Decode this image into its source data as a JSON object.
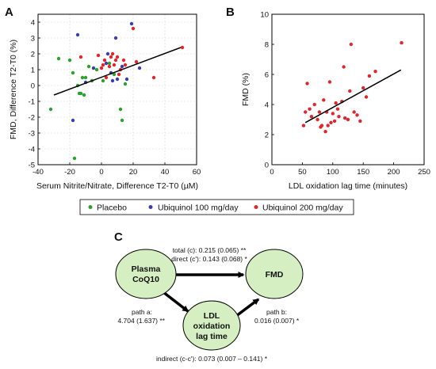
{
  "panels": {
    "a_letter": "A",
    "b_letter": "B",
    "c_letter": "C"
  },
  "chart_data": [
    {
      "panel": "A",
      "type": "scatter",
      "title": "",
      "xlabel": "Serum Nitrite/Nitrate, Difference T2-T0 (µM)",
      "ylabel": "FMD, Difference T2-T0 (%)",
      "xlim": [
        -40,
        60
      ],
      "ylim": [
        -5,
        4.5
      ],
      "xticks": [
        -40,
        -20,
        0,
        20,
        40,
        60
      ],
      "yticks": [
        -5,
        -4,
        -3,
        -2,
        -1,
        0,
        1,
        2,
        3,
        4
      ],
      "grid": true,
      "regression": {
        "x1": -30,
        "y1": -0.6,
        "x2": 50,
        "y2": 2.4
      },
      "series": [
        {
          "name": "Placebo",
          "color": "#2ca02c",
          "points": [
            [
              -32,
              -1.5
            ],
            [
              -27,
              1.7
            ],
            [
              -20,
              1.6
            ],
            [
              -18,
              0.8
            ],
            [
              -17,
              -4.6
            ],
            [
              -15,
              0.0
            ],
            [
              -14,
              -0.5
            ],
            [
              -13,
              -0.5
            ],
            [
              -12,
              0.5
            ],
            [
              -10,
              0.5
            ],
            [
              -8,
              1.2
            ],
            [
              -6,
              0.3
            ],
            [
              -3,
              1.0
            ],
            [
              1,
              0.3
            ],
            [
              5,
              1.4
            ],
            [
              8,
              0.7
            ],
            [
              12,
              -1.5
            ],
            [
              13,
              -2.2
            ],
            [
              15,
              0.1
            ],
            [
              -11,
              -0.6
            ]
          ]
        },
        {
          "name": "Ubiquinol 100 mg/day",
          "color": "#3a3fa8",
          "points": [
            [
              -18,
              -2.2
            ],
            [
              -15,
              3.2
            ],
            [
              -5,
              1.1
            ],
            [
              3,
              1.4
            ],
            [
              4,
              2.0
            ],
            [
              6,
              0.8
            ],
            [
              7,
              0.3
            ],
            [
              9,
              3.0
            ],
            [
              10,
              0.4
            ],
            [
              13,
              1.2
            ],
            [
              16,
              0.4
            ],
            [
              19,
              3.9
            ],
            [
              24,
              1.1
            ],
            [
              -10,
              0.2
            ]
          ]
        },
        {
          "name": "Ubiquinol 200 mg/day",
          "color": "#e0262d",
          "points": [
            [
              -13,
              1.8
            ],
            [
              -2,
              1.9
            ],
            [
              0,
              1.1
            ],
            [
              1,
              1.3
            ],
            [
              2,
              1.6
            ],
            [
              3,
              0.5
            ],
            [
              5,
              1.2
            ],
            [
              6,
              1.8
            ],
            [
              7,
              2.0
            ],
            [
              8,
              1.3
            ],
            [
              9,
              1.6
            ],
            [
              10,
              1.8
            ],
            [
              11,
              0.7
            ],
            [
              12,
              1.0
            ],
            [
              14,
              1.6
            ],
            [
              20,
              3.6
            ],
            [
              22,
              1.5
            ],
            [
              33,
              0.5
            ],
            [
              51,
              2.4
            ],
            [
              15,
              1.3
            ]
          ]
        }
      ]
    },
    {
      "panel": "B",
      "type": "scatter",
      "title": "",
      "xlabel": "LDL oxidation lag time (minutes)",
      "ylabel": "FMD (%)",
      "xlim": [
        0,
        250
      ],
      "ylim": [
        0,
        10
      ],
      "xticks": [
        0,
        50,
        100,
        150,
        200,
        250
      ],
      "yticks": [
        0,
        2,
        4,
        6,
        8,
        10
      ],
      "grid": false,
      "regression": {
        "x1": 55,
        "y1": 2.8,
        "x2": 212,
        "y2": 6.3
      },
      "series": [
        {
          "name": "",
          "color": "#e0262d",
          "points": [
            [
              52,
              2.6
            ],
            [
              55,
              3.5
            ],
            [
              58,
              5.4
            ],
            [
              62,
              3.7
            ],
            [
              65,
              3.2
            ],
            [
              70,
              4.0
            ],
            [
              75,
              3.0
            ],
            [
              78,
              3.5
            ],
            [
              80,
              2.5
            ],
            [
              82,
              2.6
            ],
            [
              85,
              4.3
            ],
            [
              88,
              2.2
            ],
            [
              90,
              3.5
            ],
            [
              92,
              2.6
            ],
            [
              95,
              5.5
            ],
            [
              97,
              2.8
            ],
            [
              100,
              3.4
            ],
            [
              103,
              2.9
            ],
            [
              105,
              4.1
            ],
            [
              108,
              3.7
            ],
            [
              110,
              3.2
            ],
            [
              115,
              4.2
            ],
            [
              118,
              6.5
            ],
            [
              120,
              3.1
            ],
            [
              125,
              3.0
            ],
            [
              128,
              4.9
            ],
            [
              130,
              8.0
            ],
            [
              135,
              3.5
            ],
            [
              140,
              3.3
            ],
            [
              145,
              2.9
            ],
            [
              150,
              5.1
            ],
            [
              155,
              4.5
            ],
            [
              160,
              5.9
            ],
            [
              170,
              6.2
            ],
            [
              213,
              8.1
            ]
          ]
        }
      ]
    }
  ],
  "legend": [
    {
      "label": "Placebo",
      "color": "#2ca02c"
    },
    {
      "label": "Ubiquinol 100 mg/day",
      "color": "#3a3fa8"
    },
    {
      "label": "Ubiquinol 200 mg/day",
      "color": "#e0262d"
    }
  ],
  "diagram": {
    "node_fill": "#d5efc2",
    "nodes": {
      "coq10": [
        "Plasma",
        "CoQ10"
      ],
      "fmd": [
        "FMD"
      ],
      "ldl": [
        "LDL",
        "oxidation",
        "lag time"
      ]
    },
    "edges": {
      "total": "total (c): 0.215 (0.065) **",
      "direct": "direct (c'): 0.143 (0.068) *",
      "path_a_1": "path a:",
      "path_a_2": "4.704 (1.637) **",
      "path_b_1": "path b:",
      "path_b_2": "0.016 (0.007) *",
      "indirect": "indirect (c-c'): 0.073 (0.007 – 0.141) *"
    }
  }
}
